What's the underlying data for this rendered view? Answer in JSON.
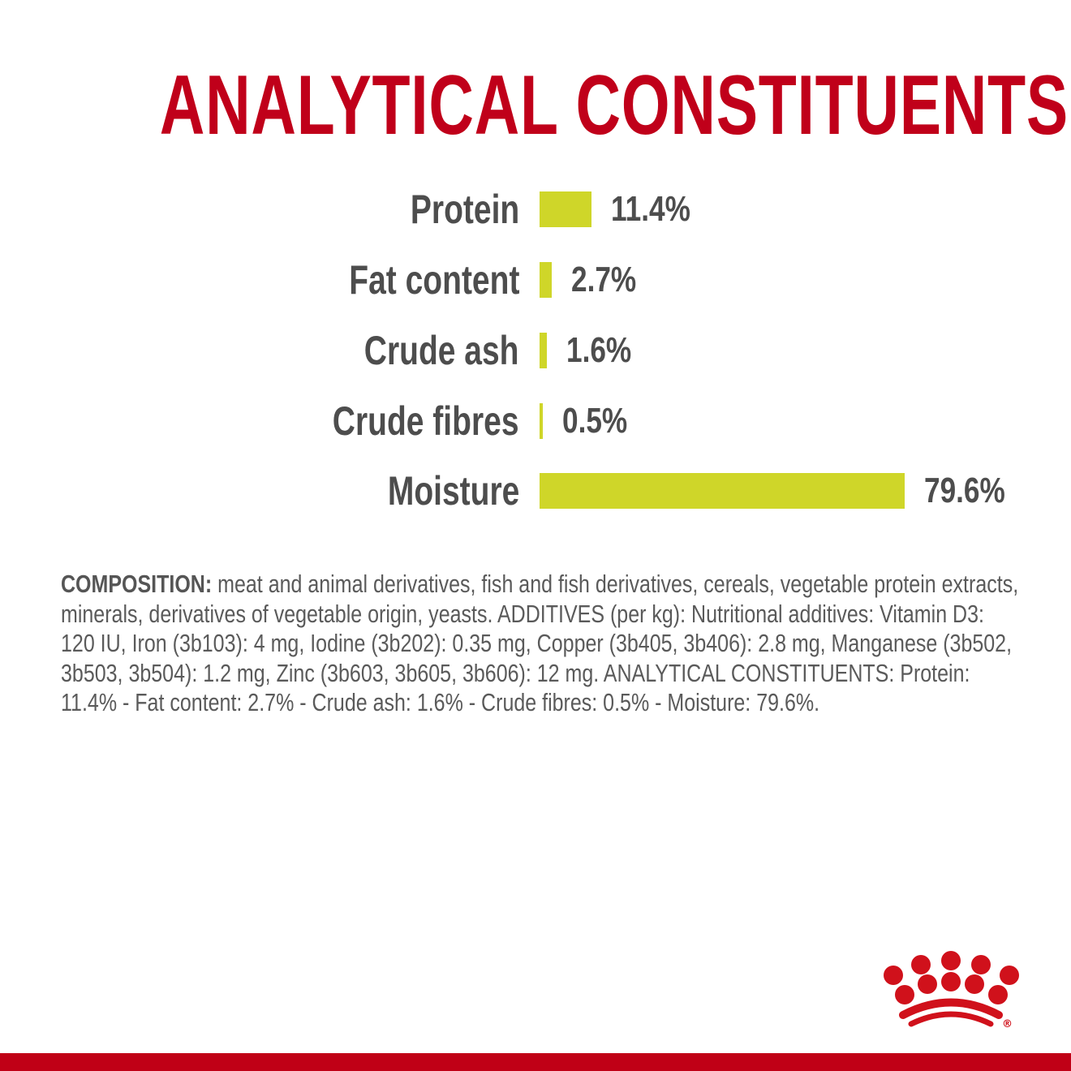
{
  "title": "ANALYTICAL CONSTITUENTS",
  "colors": {
    "brand_red": "#c0001a",
    "bar_lime": "#cfd629",
    "text_gray": "#4d4d4d"
  },
  "rows": [
    {
      "label": "Protein",
      "value": "11.4%"
    },
    {
      "label": "Fat content",
      "value": "2.7%"
    },
    {
      "label": "Crude ash",
      "value": "1.6%"
    },
    {
      "label": "Crude fibres",
      "value": "0.5%"
    },
    {
      "label": "Moisture",
      "value": "79.6%"
    }
  ],
  "composition": {
    "heading": "COMPOSITION:",
    "text": " meat and animal derivatives, fish and fish derivatives, cereals, vegetable protein extracts, minerals, derivatives of vegetable origin, yeasts. ADDITIVES (per kg): Nutritional additives: Vitamin D3: 120 IU, Iron (3b103): 4 mg, Iodine (3b202): 0.35 mg, Copper (3b405, 3b406): 2.8 mg, Manganese (3b502, 3b503, 3b504): 1.2 mg, Zinc (3b603, 3b605, 3b606): 12 mg. ANALYTICAL CONSTITUENTS: Protein: 11.4% - Fat content: 2.7% - Crude ash: 1.6% - Crude fibres: 0.5% - Moisture: 79.6%."
  },
  "logo": {
    "icon": "crown-logo-icon",
    "registered_mark": "®"
  },
  "chart_data": {
    "type": "bar",
    "orientation": "horizontal",
    "title": "ANALYTICAL CONSTITUENTS",
    "categories": [
      "Protein",
      "Fat content",
      "Crude ash",
      "Crude fibres",
      "Moisture"
    ],
    "values": [
      11.4,
      2.7,
      1.6,
      0.5,
      79.6
    ],
    "data_labels": [
      "11.4%",
      "2.7%",
      "1.6%",
      "0.5%",
      "79.6%"
    ],
    "unit": "%",
    "xlabel": "",
    "ylabel": "",
    "xlim": [
      0,
      79.6
    ],
    "grid": false,
    "legend": "none",
    "bar_color": "#cfd629"
  }
}
